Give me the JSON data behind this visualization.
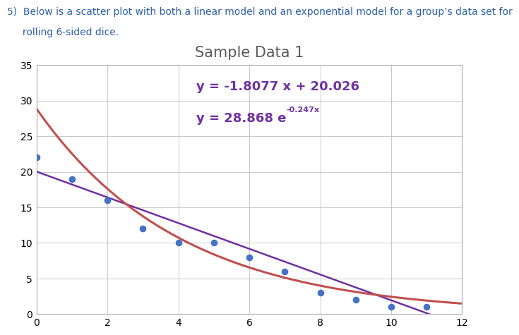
{
  "title": "Sample Data 1",
  "header_line1": "5)  Below is a scatter plot with both a linear model and an exponential model for a group’s data set for",
  "header_line2": "     rolling 6-sided dice.",
  "scatter_x": [
    0,
    1,
    2,
    3,
    4,
    5,
    6,
    7,
    8,
    9,
    10,
    11
  ],
  "scatter_y": [
    22,
    19,
    16,
    12,
    10,
    10,
    8,
    6,
    3,
    2,
    1,
    1
  ],
  "scatter_color": "#4472C4",
  "scatter_size": 35,
  "linear_color": "#7030A0",
  "linear_slope": -1.8077,
  "linear_intercept": 20.026,
  "exp_a": 28.868,
  "exp_b": -0.247,
  "exp_color": "#C0504D",
  "xlim": [
    0,
    12
  ],
  "ylim": [
    0,
    35
  ],
  "xticks": [
    0,
    2,
    4,
    6,
    8,
    10,
    12
  ],
  "yticks": [
    0,
    5,
    10,
    15,
    20,
    25,
    30,
    35
  ],
  "linear_label": "y = -1.8077 x + 20.026",
  "exp_label_base": "y = 28.868 e",
  "exp_label_exp": "-0.247x",
  "ann_x_linear": 4.5,
  "ann_y_linear": 31.5,
  "ann_x_exp": 4.5,
  "ann_y_exp": 27.0,
  "title_fontsize": 15,
  "label_fontsize": 13,
  "exp_base_fontsize": 13,
  "exp_sup_fontsize": 8,
  "tick_fontsize": 10,
  "header_fontsize": 10,
  "background_color": "#ffffff",
  "plot_bg_color": "#ffffff",
  "grid_color": "#c8c8c8",
  "title_color": "#595959",
  "linear_label_color": "#7030A0",
  "exp_label_color": "#7030A0",
  "header_color": "#2E5EA8"
}
